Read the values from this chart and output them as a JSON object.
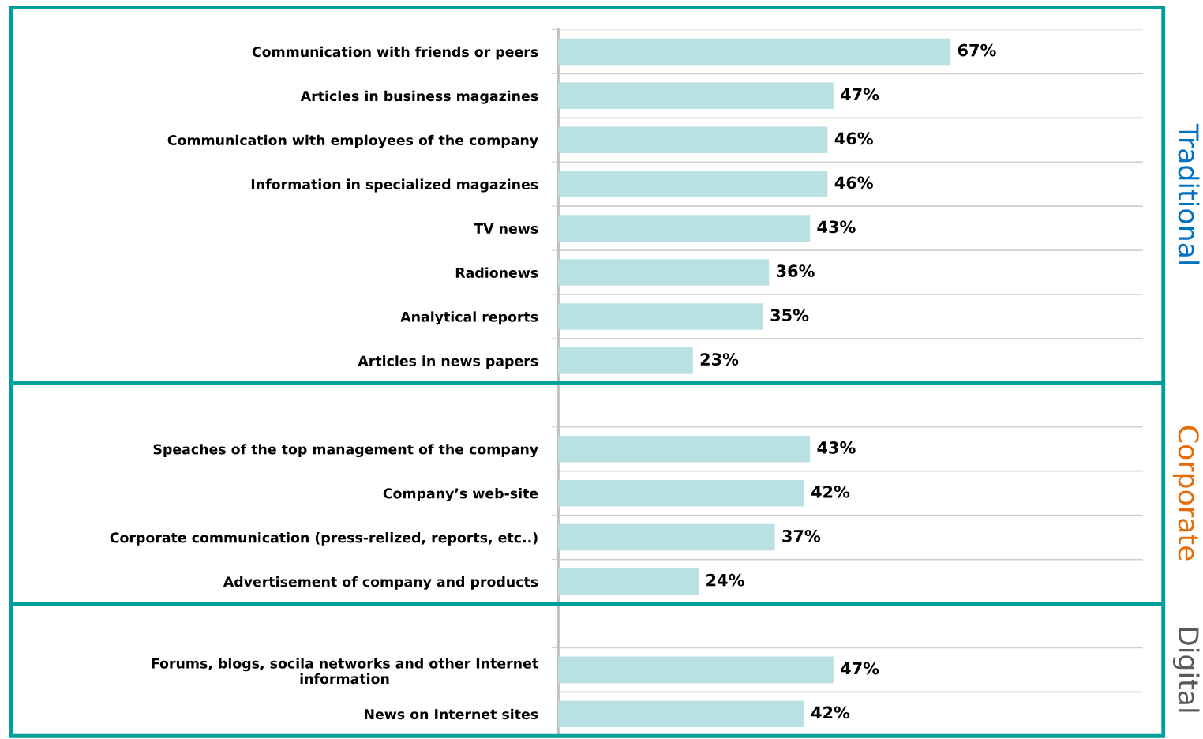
{
  "chart_data": {
    "type": "bar",
    "orientation": "horizontal",
    "categories": [
      "Communication with friends or peers",
      "Articles in business magazines",
      "Communication with employees of the company",
      "Information in specialized magazines",
      "TV news",
      "Radionews",
      "Analytical reports",
      "Articles in news papers",
      null,
      "Speaches of the top management of the company",
      "Company’s web-site",
      "Corporate communication (press-relized, reports, etc..)",
      "Advertisement of company and products",
      null,
      "Forums, blogs, socila networks and other Internet\ninformation",
      "News on Internet sites"
    ],
    "values": [
      67,
      47,
      46,
      46,
      43,
      36,
      35,
      23,
      null,
      43,
      42,
      37,
      24,
      null,
      47,
      42
    ],
    "value_labels": [
      "67%",
      "47%",
      "46%",
      "46%",
      "43%",
      "36%",
      "35%",
      "23%",
      null,
      "43%",
      "42%",
      "37%",
      "24%",
      null,
      "47%",
      "42%"
    ],
    "color": "#b9e0e3",
    "grid": "y",
    "annotations": [
      "Traditional",
      "Corporate",
      "Digital"
    ]
  }
}
